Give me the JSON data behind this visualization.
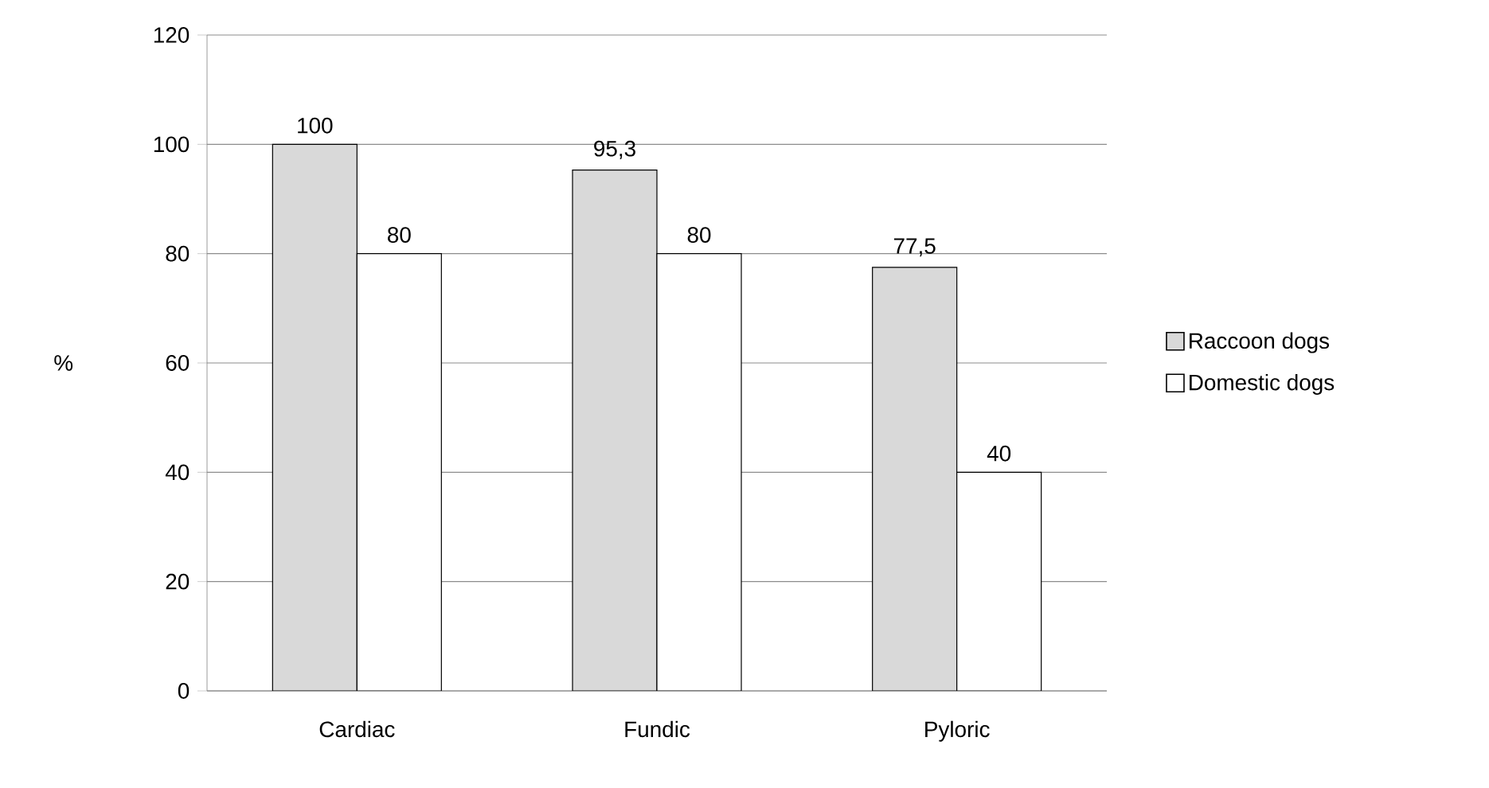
{
  "chart_data": {
    "type": "bar",
    "ylabel": "%",
    "categories": [
      "Cardiac",
      "Fundic",
      "Pyloric"
    ],
    "series": [
      {
        "name": "Raccoon dogs",
        "color": "#d9d9d9",
        "values": [
          100,
          95.3,
          77.5
        ],
        "value_labels": [
          "100",
          "95,3",
          "77,5"
        ]
      },
      {
        "name": "Domestic dogs",
        "color": "#ffffff",
        "values": [
          80,
          80,
          40
        ],
        "value_labels": [
          "80",
          "80",
          "40"
        ]
      }
    ],
    "ylim": [
      0,
      120
    ],
    "yticks": [
      0,
      20,
      40,
      60,
      80,
      100,
      120
    ],
    "grid": "y",
    "legend": "right"
  }
}
